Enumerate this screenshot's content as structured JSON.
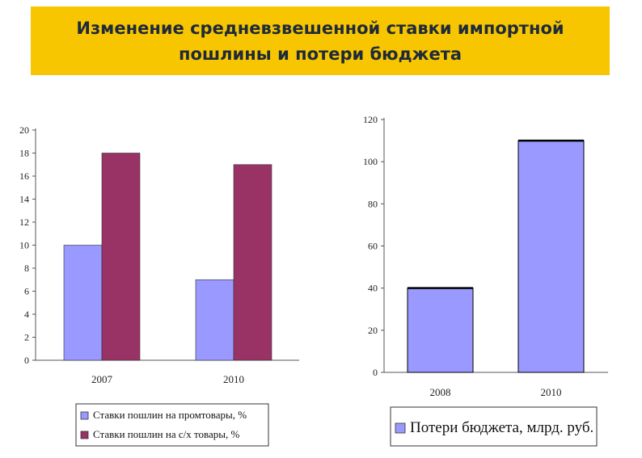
{
  "header": {
    "title_line1": "Изменение  средневзвешенной ставки импортной",
    "title_line2": "пошлины и потери бюджета",
    "banner_color": "#f7c600"
  },
  "chart_data": [
    {
      "type": "bar",
      "categories": [
        "2007",
        "2010"
      ],
      "series": [
        {
          "name": "Ставки пошлин на промтовары, %",
          "values": [
            10,
            7
          ],
          "color": "#9999ff"
        },
        {
          "name": "Ставки пошлин на с/х товары, %",
          "values": [
            18,
            17
          ],
          "color": "#993366"
        }
      ],
      "ylim": [
        0,
        20
      ],
      "yticks": [
        0,
        2,
        4,
        6,
        8,
        10,
        12,
        14,
        16,
        18,
        20
      ],
      "title": "",
      "xlabel": "",
      "ylabel": "",
      "legend": "bottom"
    },
    {
      "type": "bar",
      "categories": [
        "2008",
        "2010"
      ],
      "series": [
        {
          "name": "Потери бюджета, млрд. руб.",
          "values": [
            40,
            110
          ],
          "color": "#9999ff"
        }
      ],
      "ylim": [
        0,
        120
      ],
      "yticks": [
        0,
        20,
        40,
        60,
        80,
        100,
        120
      ],
      "title": "",
      "xlabel": "",
      "ylabel": "",
      "legend": "bottom"
    }
  ]
}
